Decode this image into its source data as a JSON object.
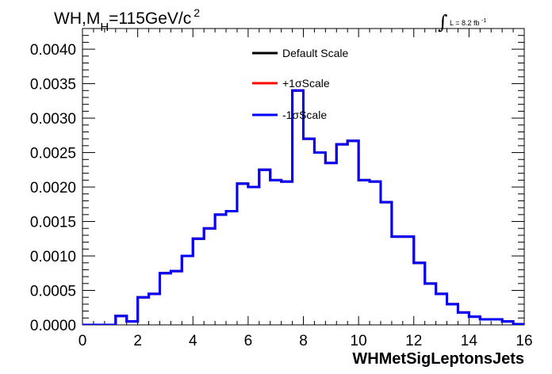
{
  "title": {
    "base": "WH,M",
    "sub": "H",
    "rest": "=115GeV/c",
    "sup": "2"
  },
  "lumi": {
    "integral": "∫",
    "text": "L = 8.2 fb",
    "sup": "-1"
  },
  "chart_data": {
    "type": "line",
    "xlabel": "WHMetSigLeptonsJets",
    "ylabel": "",
    "xlim": [
      0,
      16
    ],
    "ylim": [
      0,
      0.0043
    ],
    "xticks": [
      0,
      2,
      4,
      6,
      8,
      10,
      12,
      14,
      16
    ],
    "xtick_labels": [
      "0",
      "2",
      "4",
      "6",
      "8",
      "10",
      "12",
      "14",
      "16"
    ],
    "yticks": [
      0,
      0.0005,
      0.001,
      0.0015,
      0.002,
      0.0025,
      0.003,
      0.0035,
      0.004
    ],
    "ytick_labels": [
      "0.0000",
      "0.0005",
      "0.0010",
      "0.0015",
      "0.0020",
      "0.0025",
      "0.0030",
      "0.0035",
      "0.0040"
    ],
    "grid": false,
    "legend_position": "top-center",
    "bin_edges": [
      0,
      0.4,
      0.8,
      1.2,
      1.6,
      2.0,
      2.4,
      2.8,
      3.2,
      3.6,
      4.0,
      4.4,
      4.8,
      5.2,
      5.6,
      6.0,
      6.4,
      6.8,
      7.2,
      7.6,
      8.0,
      8.4,
      8.8,
      9.2,
      9.6,
      10.0,
      10.4,
      10.8,
      11.2,
      11.6,
      12.0,
      12.4,
      12.8,
      13.2,
      13.6,
      14.0,
      14.4,
      14.8,
      15.2,
      15.6,
      16.0
    ],
    "series": [
      {
        "name": "Default Scale",
        "color": "#000000",
        "values": [
          0.0,
          0.0,
          0.0,
          0.00013,
          5e-05,
          0.0004,
          0.00045,
          0.00075,
          0.00078,
          0.001,
          0.00125,
          0.0014,
          0.0016,
          0.00165,
          0.00205,
          0.002,
          0.00225,
          0.0021,
          0.00208,
          0.0034,
          0.0027,
          0.0025,
          0.00235,
          0.00262,
          0.00267,
          0.0021,
          0.00208,
          0.00178,
          0.00128,
          0.00128,
          0.0009,
          0.0006,
          0.00045,
          0.0003,
          0.00018,
          0.00012,
          8e-05,
          8e-05,
          5e-05,
          1e-05
        ]
      },
      {
        "name": "+1σScale",
        "color": "#ff0000",
        "values": [
          0.0,
          0.0,
          0.0,
          0.00013,
          5e-05,
          0.0004,
          0.00045,
          0.00075,
          0.00078,
          0.001,
          0.00125,
          0.0014,
          0.0016,
          0.00165,
          0.00205,
          0.002,
          0.00225,
          0.0021,
          0.00208,
          0.0034,
          0.0027,
          0.0025,
          0.00235,
          0.00262,
          0.00267,
          0.0021,
          0.00208,
          0.00178,
          0.00128,
          0.00128,
          0.0009,
          0.0006,
          0.00045,
          0.0003,
          0.00018,
          0.00012,
          8e-05,
          8e-05,
          5e-05,
          1e-05
        ]
      },
      {
        "name": "-1σScale",
        "color": "#0000ff",
        "values": [
          0.0,
          0.0,
          0.0,
          0.00013,
          5e-05,
          0.0004,
          0.00045,
          0.00075,
          0.00078,
          0.001,
          0.00125,
          0.0014,
          0.0016,
          0.00165,
          0.00205,
          0.002,
          0.00225,
          0.0021,
          0.00208,
          0.0034,
          0.0027,
          0.0025,
          0.00235,
          0.00262,
          0.00267,
          0.0021,
          0.00208,
          0.00178,
          0.00128,
          0.00128,
          0.0009,
          0.0006,
          0.00045,
          0.0003,
          0.00018,
          0.00012,
          8e-05,
          8e-05,
          5e-05,
          1e-05
        ]
      }
    ]
  }
}
